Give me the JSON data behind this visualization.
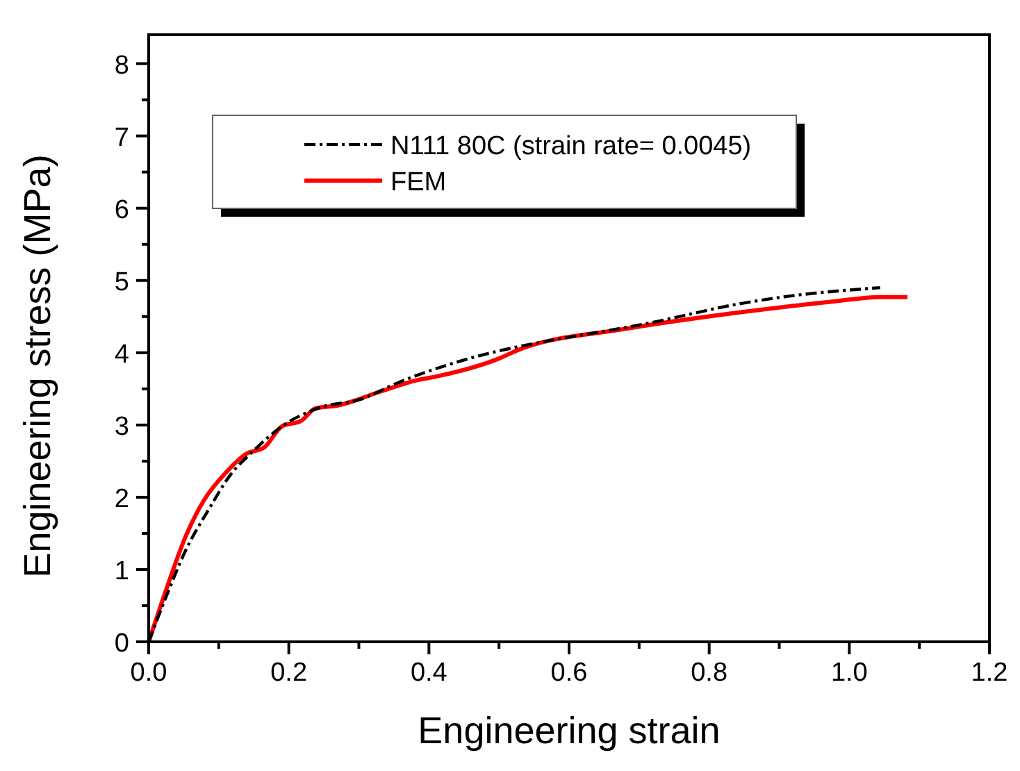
{
  "chart_data": {
    "type": "line",
    "xlabel": "Engineering strain",
    "ylabel": "Engineering stress (MPa)",
    "xlim": [
      0,
      1.2
    ],
    "xticks": [
      {
        "value": 0,
        "label": "0.0"
      },
      {
        "value": 0.1,
        "label": null
      },
      {
        "value": 0.2,
        "label": "0.2"
      },
      {
        "value": 0.3,
        "label": null
      },
      {
        "value": 0.4,
        "label": "0.4"
      },
      {
        "value": 0.5,
        "label": null
      },
      {
        "value": 0.6,
        "label": "0.6"
      },
      {
        "value": 0.7,
        "label": null
      },
      {
        "value": 0.8,
        "label": "0.8"
      },
      {
        "value": 0.9,
        "label": null
      },
      {
        "value": 1.0,
        "label": "1.0"
      },
      {
        "value": 1.1,
        "label": null
      },
      {
        "value": 1.2,
        "label": "1.2"
      }
    ],
    "ylim": [
      0,
      8.4
    ],
    "yticks": [
      0,
      {
        "value": 0.5,
        "label": null
      },
      1,
      {
        "value": 1.5,
        "label": null
      },
      2,
      {
        "value": 2.5,
        "label": null
      },
      3,
      {
        "value": 3.5,
        "label": null
      },
      4,
      {
        "value": 4.5,
        "label": null
      },
      5,
      {
        "value": 5.5,
        "label": null
      },
      6,
      {
        "value": 6.5,
        "label": null
      },
      7,
      {
        "value": 7.5,
        "label": null
      },
      8
    ],
    "grid": false,
    "legend": "top",
    "series": [
      {
        "name": "N111 80C (strain rate= 0.0045)",
        "color": "#000000",
        "line_style": "dashdot",
        "x": [
          0,
          0.026,
          0.052,
          0.085,
          0.119,
          0.145,
          0.19,
          0.244,
          0.304,
          0.357,
          0.423,
          0.502,
          0.536,
          0.714,
          0.845,
          0.912,
          1.044
        ],
        "values": [
          0,
          0.65,
          1.25,
          1.82,
          2.34,
          2.6,
          2.98,
          3.24,
          3.36,
          3.59,
          3.82,
          4.03,
          4.1,
          4.41,
          4.68,
          4.78,
          4.9
        ]
      },
      {
        "name": "FEM",
        "color": "#ff0000",
        "line_style": "solid",
        "x": [
          0,
          0.026,
          0.052,
          0.079,
          0.111,
          0.139,
          0.165,
          0.19,
          0.218,
          0.238,
          0.27,
          0.33,
          0.383,
          0.41,
          0.5,
          0.528,
          0.68,
          0.845,
          0.978,
          1.044,
          1.083
        ],
        "values": [
          0,
          0.75,
          1.44,
          1.96,
          2.35,
          2.6,
          2.69,
          2.98,
          3.06,
          3.23,
          3.27,
          3.46,
          3.62,
          3.67,
          3.92,
          4.04,
          4.33,
          4.56,
          4.71,
          4.77,
          4.77
        ]
      }
    ]
  }
}
